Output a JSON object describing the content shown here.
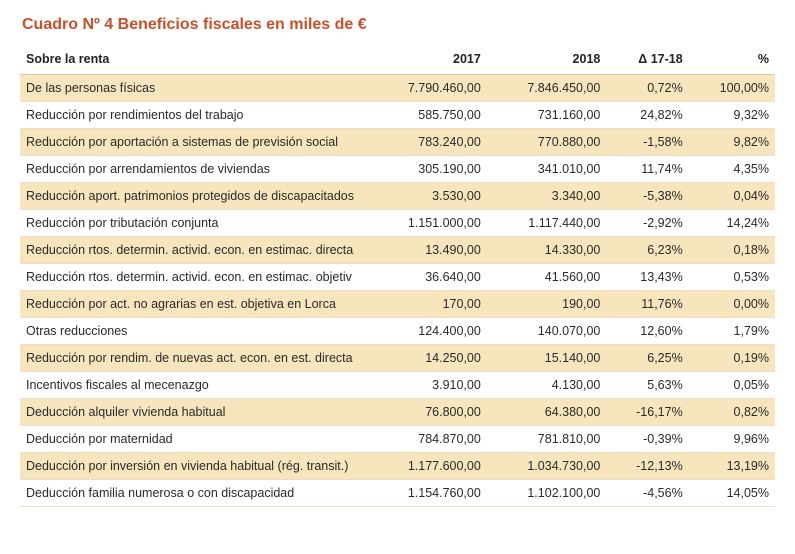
{
  "table": {
    "title": "Cuadro Nº 4 Beneficios fiscales en miles de €",
    "colors": {
      "title": "#c94f2b",
      "stripe_bg": "#f7e5bd",
      "row_bg": "#ffffff",
      "border": "#eadfc4",
      "header_border": "#d8c9a8",
      "text": "#2a2a2a"
    },
    "font_size_title": 16,
    "font_size_body": 12.5,
    "columns": [
      {
        "key": "label",
        "header": "Sobre la renta",
        "align": "left"
      },
      {
        "key": "y2017",
        "header": "2017",
        "align": "right"
      },
      {
        "key": "y2018",
        "header": "2018",
        "align": "right"
      },
      {
        "key": "delta",
        "header": "Δ 17-18",
        "align": "right"
      },
      {
        "key": "pct",
        "header": "%",
        "align": "right"
      }
    ],
    "rows": [
      {
        "stripe": true,
        "label": "De las personas físicas",
        "y2017": "7.790.460,00",
        "y2018": "7.846.450,00",
        "delta": "0,72%",
        "pct": "100,00%"
      },
      {
        "stripe": false,
        "label": "Reducción por rendimientos del trabajo",
        "y2017": "585.750,00",
        "y2018": "731.160,00",
        "delta": "24,82%",
        "pct": "9,32%"
      },
      {
        "stripe": true,
        "label": "Reducción por aportación a sistemas de previsión social",
        "y2017": "783.240,00",
        "y2018": "770.880,00",
        "delta": "-1,58%",
        "pct": "9,82%"
      },
      {
        "stripe": false,
        "label": "Reducción por arrendamientos de viviendas",
        "y2017": "305.190,00",
        "y2018": "341.010,00",
        "delta": "11,74%",
        "pct": "4,35%"
      },
      {
        "stripe": true,
        "label": "Reducción aport. patrimonios protegidos de discapacitados",
        "y2017": "3.530,00",
        "y2018": "3.340,00",
        "delta": "-5,38%",
        "pct": "0,04%"
      },
      {
        "stripe": false,
        "label": "Reducción por tributación conjunta",
        "y2017": "1.151.000,00",
        "y2018": "1.117.440,00",
        "delta": "-2,92%",
        "pct": "14,24%"
      },
      {
        "stripe": true,
        "label": "Reducción rtos. determin. activid. econ. en estimac. directa",
        "y2017": "13.490,00",
        "y2018": "14.330,00",
        "delta": "6,23%",
        "pct": "0,18%"
      },
      {
        "stripe": false,
        "label": "Reducción rtos. determin. activid. econ. en estimac. objetiv",
        "y2017": "36.640,00",
        "y2018": "41.560,00",
        "delta": "13,43%",
        "pct": "0,53%"
      },
      {
        "stripe": true,
        "label": "Reducción por act. no agrarias en est. objetiva en Lorca",
        "y2017": "170,00",
        "y2018": "190,00",
        "delta": "11,76%",
        "pct": "0,00%"
      },
      {
        "stripe": false,
        "label": "Otras reducciones",
        "y2017": "124.400,00",
        "y2018": "140.070,00",
        "delta": "12,60%",
        "pct": "1,79%"
      },
      {
        "stripe": true,
        "label": "Reducción por rendim. de nuevas act. econ. en est. directa",
        "y2017": "14.250,00",
        "y2018": "15.140,00",
        "delta": "6,25%",
        "pct": "0,19%"
      },
      {
        "stripe": false,
        "label": "Incentivos fiscales al mecenazgo",
        "y2017": "3.910,00",
        "y2018": "4.130,00",
        "delta": "5,63%",
        "pct": "0,05%"
      },
      {
        "stripe": true,
        "label": "Deducción alquiler vivienda habitual",
        "y2017": "76.800,00",
        "y2018": "64.380,00",
        "delta": "-16,17%",
        "pct": "0,82%"
      },
      {
        "stripe": false,
        "label": "Deducción por maternidad",
        "y2017": "784.870,00",
        "y2018": "781.810,00",
        "delta": "-0,39%",
        "pct": "9,96%"
      },
      {
        "stripe": true,
        "label": "Deducción por inversión en vivienda habitual (rég. transit.)",
        "y2017": "1.177.600,00",
        "y2018": "1.034.730,00",
        "delta": "-12,13%",
        "pct": "13,19%"
      },
      {
        "stripe": false,
        "label": "Deducción familia numerosa o con discapacidad",
        "y2017": "1.154.760,00",
        "y2018": "1.102.100,00",
        "delta": "-4,56%",
        "pct": "14,05%"
      }
    ]
  }
}
